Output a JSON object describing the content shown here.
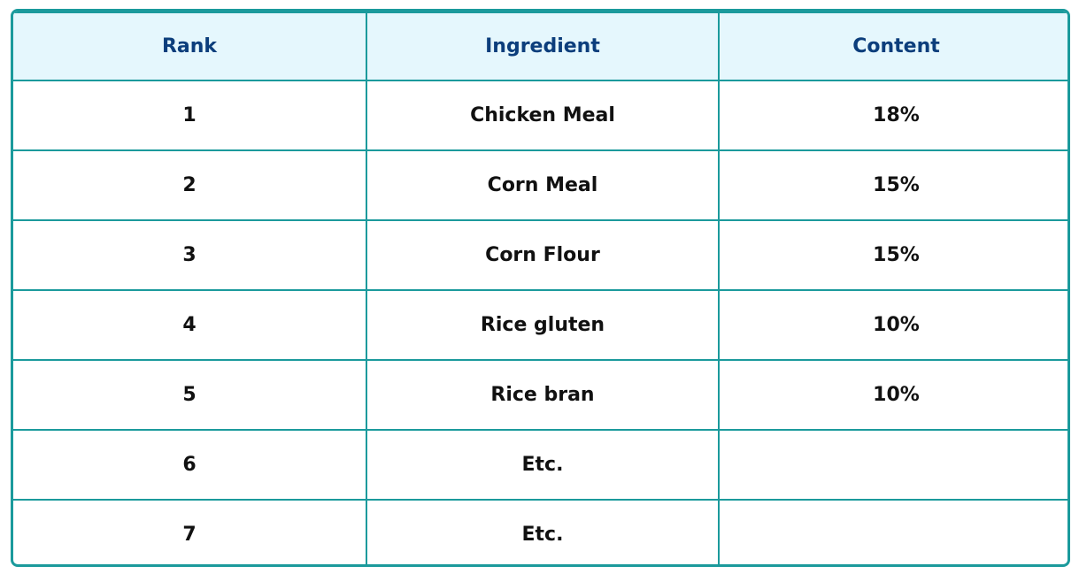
{
  "table": {
    "header": [
      "Rank",
      "Ingredient",
      "Content"
    ],
    "rows": [
      [
        "1",
        "Chicken Meal",
        "18%"
      ],
      [
        "2",
        "Corn Meal",
        "15%"
      ],
      [
        "3",
        "Corn Flour",
        "15%"
      ],
      [
        "4",
        "Rice gluten",
        "10%"
      ],
      [
        "5",
        "Rice bran",
        "10%"
      ],
      [
        "6",
        "Etc."
      ],
      [
        "7",
        "Etc."
      ]
    ]
  }
}
